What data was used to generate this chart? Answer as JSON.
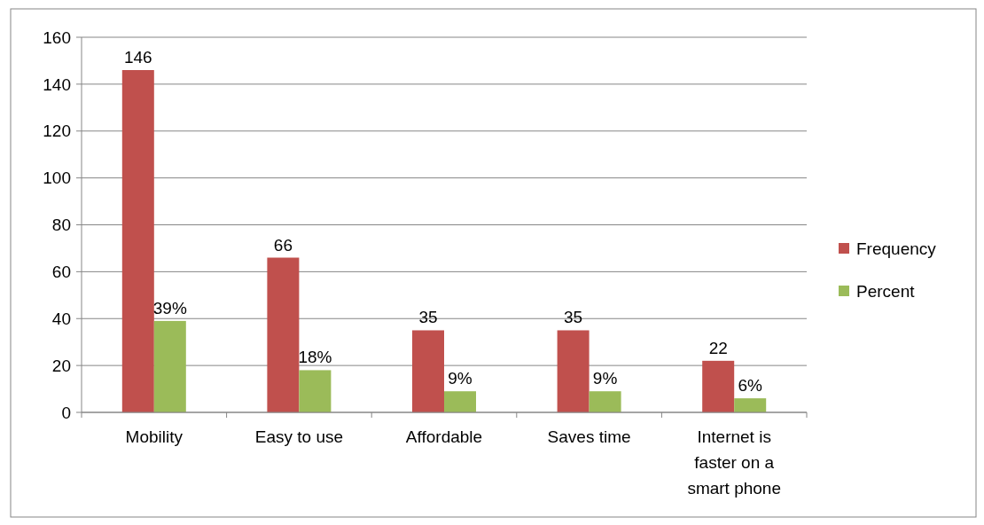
{
  "chart_data": {
    "type": "bar",
    "categories": [
      "Mobility",
      "Easy to use",
      "Affordable",
      "Saves time",
      "Internet is faster on a smart phone"
    ],
    "series": [
      {
        "name": "Frequency",
        "color": "#c0504d",
        "values": [
          146,
          66,
          35,
          35,
          22
        ]
      },
      {
        "name": "Percent",
        "color": "#9bbb59",
        "values": [
          39,
          18,
          9,
          9,
          6
        ],
        "value_labels": [
          "39%",
          "18%",
          "9%",
          "9%",
          "6%"
        ]
      }
    ],
    "ylim": [
      0,
      160
    ],
    "yticks": [
      0,
      20,
      40,
      60,
      80,
      100,
      120,
      140,
      160
    ],
    "grid": "y",
    "legend": "right",
    "data_labels": true
  }
}
